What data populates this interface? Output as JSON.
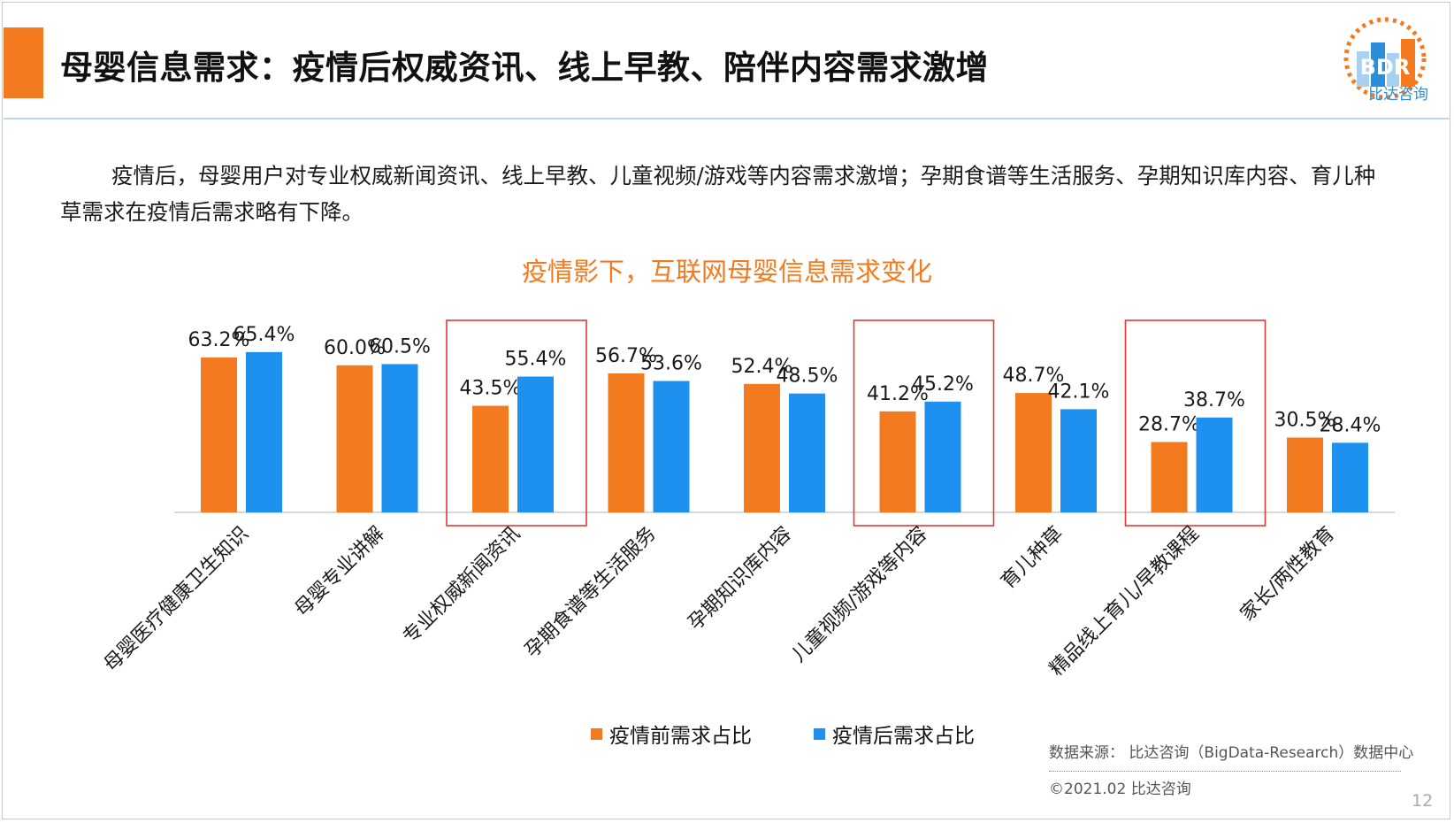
{
  "header": {
    "title": "母婴信息需求：疫情后权威资讯、线上早教、陪伴内容需求激增",
    "logo_text": "比达咨询",
    "logo_letters": "BDR"
  },
  "intro": "疫情后，母婴用户对专业权威新闻资讯、线上早教、儿童视频/游戏等内容需求激增；孕期食谱等生活服务、孕期知识库内容、育儿种草需求在疫情后需求略有下降。",
  "colors": {
    "accent": "#f47a20",
    "before": "#f47a20",
    "after": "#1e90ef",
    "highlight_box": "#e53935",
    "title_rule": "#bcd7ee"
  },
  "chart_data": {
    "type": "bar",
    "title": "疫情影下，互联网母婴信息需求变化",
    "categories": [
      "母婴医疗健康卫生知识",
      "母婴专业讲解",
      "专业权威新闻资讯",
      "孕期食谱等生活服务",
      "孕期知识库内容",
      "儿童视频/游戏等内容",
      "育儿种草",
      "精品线上育儿/早教课程",
      "家长/两性教育"
    ],
    "series": [
      {
        "name": "疫情前需求占比",
        "values": [
          63.2,
          60.0,
          43.5,
          56.7,
          52.4,
          41.2,
          48.7,
          28.7,
          30.5
        ],
        "color": "#f47a20"
      },
      {
        "name": "疫情后需求占比",
        "values": [
          65.4,
          60.5,
          55.4,
          53.6,
          48.5,
          45.2,
          42.1,
          38.7,
          28.4
        ],
        "color": "#1e90ef"
      }
    ],
    "value_labels": [
      [
        "63.2%",
        "60.0%",
        "43.5%",
        "56.7%",
        "52.4%",
        "41.2%",
        "48.7%",
        "28.7%",
        "30.5%"
      ],
      [
        "65.4%",
        "60.5%",
        "55.4%",
        "53.6%",
        "48.5%",
        "45.2%",
        "42.1%",
        "38.7%",
        "28.4%"
      ]
    ],
    "highlighted_categories": [
      "专业权威新闻资讯",
      "儿童视频/游戏等内容",
      "精品线上育儿/早教课程"
    ],
    "ylim": [
      0,
      100
    ],
    "grid": false,
    "legend_position": "bottom"
  },
  "footer": {
    "source": "数据来源： 比达咨询（BigData-Research）数据中心",
    "copyright": "©2021.02  比达咨询",
    "page": "12"
  }
}
